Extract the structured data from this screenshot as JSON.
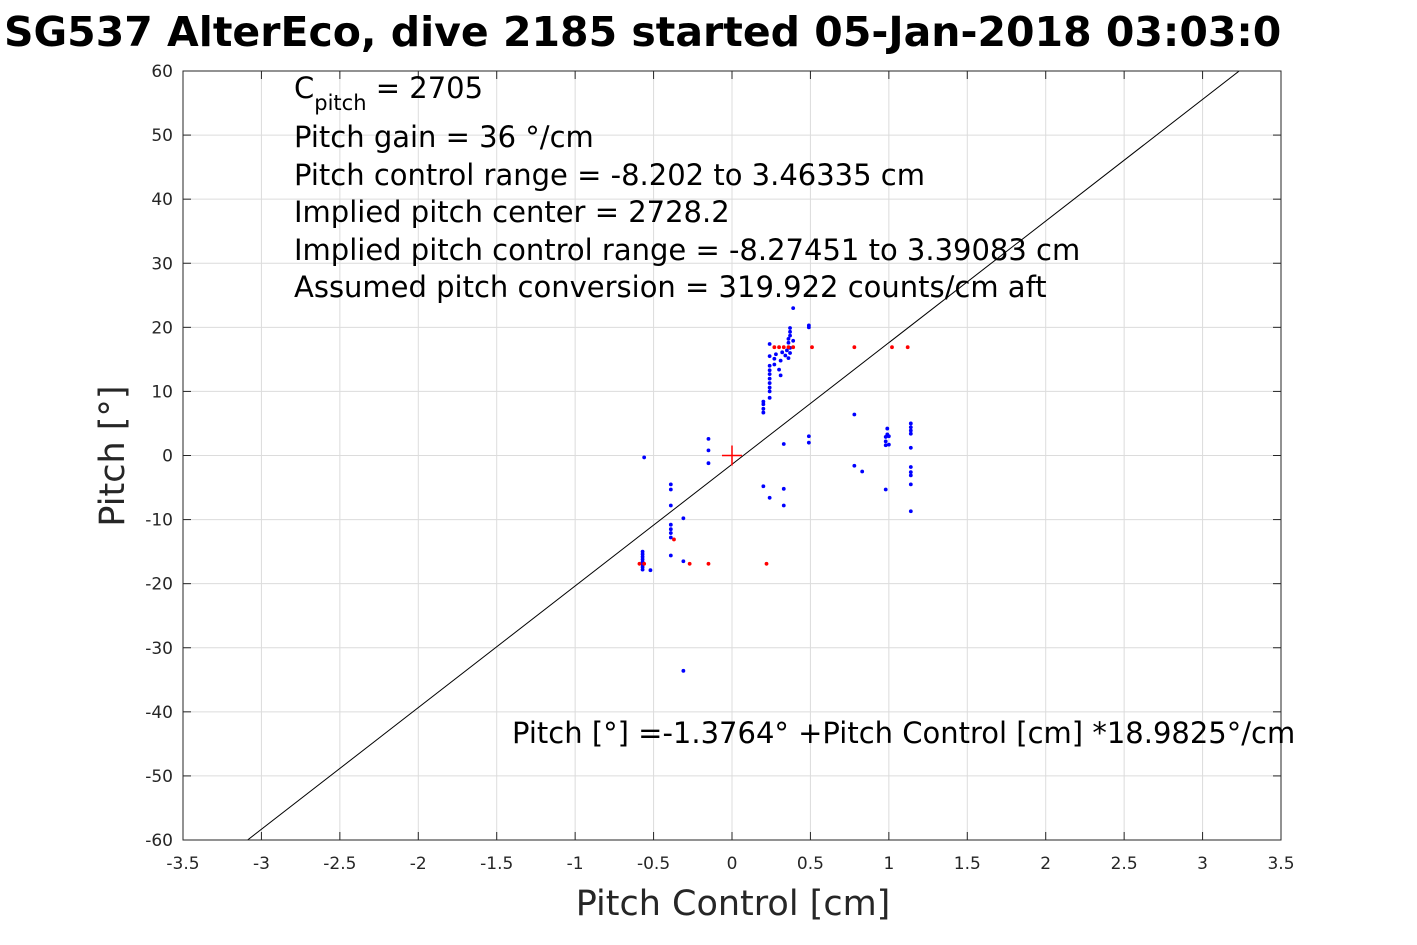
{
  "chart_data": {
    "type": "scatter",
    "title": "SG537 AlterEco, dive 2185 started 05-Jan-2018 03:03:0",
    "xlabel": "Pitch Control [cm]",
    "ylabel": "Pitch [°]",
    "xlim": [
      -3.5,
      3.5
    ],
    "ylim": [
      -60,
      60
    ],
    "grid": true,
    "xticks": [
      -3.5,
      -3,
      -2.5,
      -2,
      -1.5,
      -1,
      -0.5,
      0,
      0.5,
      1,
      1.5,
      2,
      2.5,
      3,
      3.5
    ],
    "xtick_labels": [
      "-3.5",
      "-3",
      "-2.5",
      "-2",
      "-1.5",
      "-1",
      "-0.5",
      "0",
      "0.5",
      "1",
      "1.5",
      "2",
      "2.5",
      "3",
      "3.5"
    ],
    "yticks": [
      -60,
      -50,
      -40,
      -30,
      -20,
      -10,
      0,
      10,
      20,
      30,
      40,
      50,
      60
    ],
    "ytick_labels": [
      "-60",
      "-50",
      "-40",
      "-30",
      "-20",
      "-10",
      "0",
      "10",
      "20",
      "30",
      "40",
      "50",
      "60"
    ],
    "annotations": {
      "c_pitch_label": "C",
      "c_pitch_sub": "pitch",
      "c_pitch_value": " = 2705",
      "lines": [
        "Pitch gain = 36 °/cm",
        "Pitch control range = -8.202 to 3.46335 cm",
        "Implied pitch center = 2728.2",
        "Implied pitch control range = -8.27451 to 3.39083 cm",
        "Assumed pitch conversion = 319.922 counts/cm aft"
      ],
      "fit_text": "Pitch [°] =-1.3764° +Pitch Control [cm] *18.9825°/cm"
    },
    "fit_line": {
      "intercept": -1.3764,
      "slope": 18.9825,
      "color": "#000000"
    },
    "center_marker": {
      "x": 0,
      "y": 0,
      "color": "#ff0000"
    },
    "series": [
      {
        "color": "#0000ff",
        "points": [
          [
            -0.56,
            -0.3
          ],
          [
            -0.57,
            -15.0
          ],
          [
            -0.57,
            -15.4
          ],
          [
            -0.57,
            -15.8
          ],
          [
            -0.57,
            -16.2
          ],
          [
            -0.57,
            -16.6
          ],
          [
            -0.57,
            -17.0
          ],
          [
            -0.57,
            -17.4
          ],
          [
            -0.57,
            -17.8
          ],
          [
            -0.52,
            -17.9
          ],
          [
            -0.39,
            -4.5
          ],
          [
            -0.39,
            -5.3
          ],
          [
            -0.39,
            -7.8
          ],
          [
            -0.39,
            -10.8
          ],
          [
            -0.39,
            -11.5
          ],
          [
            -0.39,
            -12.1
          ],
          [
            -0.39,
            -12.8
          ],
          [
            -0.39,
            -15.6
          ],
          [
            -0.31,
            -9.8
          ],
          [
            -0.31,
            -16.5
          ],
          [
            -0.31,
            -33.6
          ],
          [
            -0.15,
            2.6
          ],
          [
            -0.15,
            0.8
          ],
          [
            -0.15,
            -1.2
          ],
          [
            0.2,
            -4.8
          ],
          [
            0.2,
            6.7
          ],
          [
            0.2,
            7.3
          ],
          [
            0.2,
            8.0
          ],
          [
            0.2,
            8.4
          ],
          [
            0.24,
            -6.6
          ],
          [
            0.24,
            9.0
          ],
          [
            0.24,
            10.0
          ],
          [
            0.24,
            10.6
          ],
          [
            0.24,
            11.3
          ],
          [
            0.24,
            12.0
          ],
          [
            0.24,
            12.7
          ],
          [
            0.24,
            13.3
          ],
          [
            0.24,
            14.0
          ],
          [
            0.24,
            15.5
          ],
          [
            0.24,
            17.4
          ],
          [
            0.27,
            14.2
          ],
          [
            0.27,
            15.1
          ],
          [
            0.28,
            15.8
          ],
          [
            0.3,
            13.4
          ],
          [
            0.31,
            12.5
          ],
          [
            0.31,
            14.8
          ],
          [
            0.32,
            16.1
          ],
          [
            0.33,
            -5.2
          ],
          [
            0.33,
            -7.8
          ],
          [
            0.33,
            1.8
          ],
          [
            0.34,
            15.6
          ],
          [
            0.35,
            16.4
          ],
          [
            0.36,
            17.6
          ],
          [
            0.36,
            18.2
          ],
          [
            0.36,
            15.2
          ],
          [
            0.37,
            16.0
          ],
          [
            0.37,
            16.8
          ],
          [
            0.37,
            18.7
          ],
          [
            0.37,
            19.3
          ],
          [
            0.37,
            19.9
          ],
          [
            0.39,
            23.0
          ],
          [
            0.39,
            17.9
          ],
          [
            0.49,
            20.3
          ],
          [
            0.49,
            20.0
          ],
          [
            0.49,
            2.0
          ],
          [
            0.49,
            3.0
          ],
          [
            0.78,
            6.4
          ],
          [
            0.78,
            -1.6
          ],
          [
            0.83,
            -2.5
          ],
          [
            0.98,
            -5.3
          ],
          [
            0.98,
            1.6
          ],
          [
            0.98,
            2.2
          ],
          [
            0.98,
            2.9
          ],
          [
            0.99,
            3.3
          ],
          [
            0.99,
            4.2
          ],
          [
            1.0,
            1.7
          ],
          [
            1.0,
            3.0
          ],
          [
            1.14,
            5.0
          ],
          [
            1.14,
            4.4
          ],
          [
            1.14,
            3.9
          ],
          [
            1.14,
            3.4
          ],
          [
            1.14,
            1.2
          ],
          [
            1.14,
            -1.8
          ],
          [
            1.14,
            -2.6
          ],
          [
            1.14,
            -3.1
          ],
          [
            1.14,
            -4.5
          ],
          [
            1.14,
            -8.7
          ]
        ]
      },
      {
        "color": "#ff0000",
        "points": [
          [
            -0.59,
            -16.9
          ],
          [
            -0.56,
            -16.9
          ],
          [
            -0.37,
            -13.1
          ],
          [
            -0.27,
            -16.9
          ],
          [
            -0.15,
            -16.9
          ],
          [
            0.22,
            -16.9
          ],
          [
            0.27,
            16.9
          ],
          [
            0.3,
            16.9
          ],
          [
            0.33,
            16.9
          ],
          [
            0.36,
            16.9
          ],
          [
            0.39,
            16.9
          ],
          [
            0.51,
            16.9
          ],
          [
            0.78,
            16.9
          ],
          [
            1.02,
            16.9
          ],
          [
            1.12,
            16.9
          ]
        ]
      }
    ]
  }
}
